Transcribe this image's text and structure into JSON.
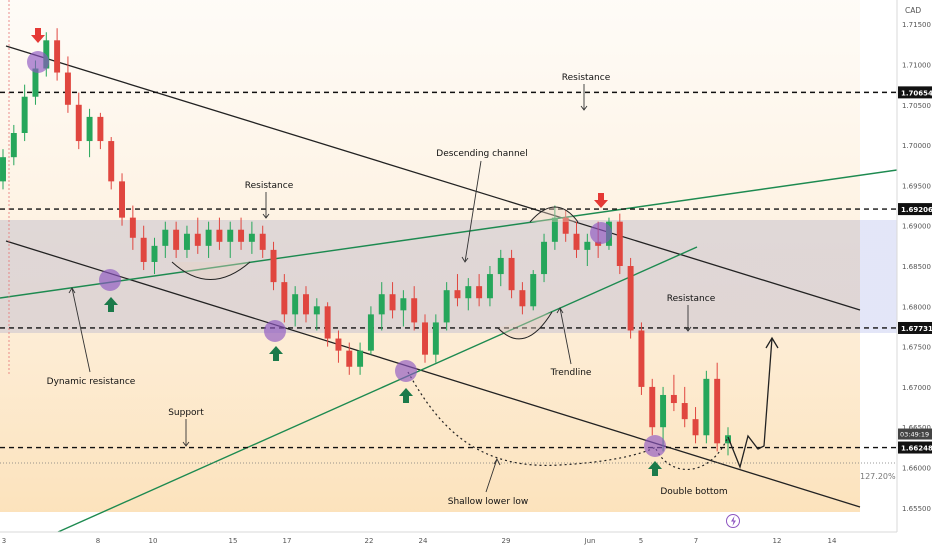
{
  "chart_data": {
    "type": "candlestick",
    "currency": "CAD",
    "x_ticks": [
      "3",
      "8",
      "10",
      "15",
      "17",
      "22",
      "24",
      "29",
      "Jun",
      "5",
      "7",
      "12",
      "14"
    ],
    "y_ticks": [
      "1.71500",
      "1.71000",
      "1.70500",
      "1.70000",
      "1.69500",
      "1.69000",
      "1.68500",
      "1.68000",
      "1.67500",
      "1.67000",
      "1.66500",
      "1.66000",
      "1.65500"
    ],
    "ylim": [
      1.652,
      1.718
    ],
    "price_levels": [
      {
        "price": 1.70654,
        "label": "1.70654"
      },
      {
        "price": 1.69206,
        "label": "1.69206"
      },
      {
        "price": 1.67731,
        "label": "1.67731"
      },
      {
        "price": 1.66248,
        "label": "1.66248"
      }
    ],
    "current_price": "1.66248",
    "countdown": "03:49:19",
    "fib_label": "127.20%",
    "fib_level": 1.6602,
    "annotations": [
      "Resistance",
      "Resistance",
      "Descending channel",
      "Resistance",
      "Dynamic resistance",
      "Trendline",
      "Support",
      "Shallow lower low",
      "Double bottom"
    ],
    "candles": [
      [
        1.6955,
        1.6995,
        1.6945,
        1.6985
      ],
      [
        1.6985,
        1.7025,
        1.6975,
        1.7015
      ],
      [
        1.7015,
        1.7075,
        1.7005,
        1.706
      ],
      [
        1.706,
        1.7105,
        1.705,
        1.7095
      ],
      [
        1.7095,
        1.714,
        1.7085,
        1.713
      ],
      [
        1.713,
        1.7145,
        1.708,
        1.709
      ],
      [
        1.709,
        1.711,
        1.704,
        1.705
      ],
      [
        1.705,
        1.7065,
        1.6995,
        1.7005
      ],
      [
        1.7005,
        1.7045,
        1.6985,
        1.7035
      ],
      [
        1.7035,
        1.704,
        1.6995,
        1.7005
      ],
      [
        1.7005,
        1.701,
        1.6945,
        1.6955
      ],
      [
        1.6955,
        1.6965,
        1.69,
        1.691
      ],
      [
        1.691,
        1.6925,
        1.687,
        1.6885
      ],
      [
        1.6885,
        1.69,
        1.6845,
        1.6855
      ],
      [
        1.6855,
        1.6885,
        1.684,
        1.6875
      ],
      [
        1.6875,
        1.6905,
        1.686,
        1.6895
      ],
      [
        1.6895,
        1.6905,
        1.686,
        1.687
      ],
      [
        1.687,
        1.69,
        1.686,
        1.689
      ],
      [
        1.689,
        1.691,
        1.6865,
        1.6875
      ],
      [
        1.6875,
        1.6905,
        1.686,
        1.6895
      ],
      [
        1.6895,
        1.691,
        1.687,
        1.688
      ],
      [
        1.688,
        1.6905,
        1.686,
        1.6895
      ],
      [
        1.6895,
        1.691,
        1.687,
        1.688
      ],
      [
        1.688,
        1.6905,
        1.6865,
        1.689
      ],
      [
        1.689,
        1.69,
        1.686,
        1.687
      ],
      [
        1.687,
        1.688,
        1.682,
        1.683
      ],
      [
        1.683,
        1.684,
        1.678,
        1.679
      ],
      [
        1.679,
        1.6825,
        1.6775,
        1.6815
      ],
      [
        1.6815,
        1.6825,
        1.678,
        1.679
      ],
      [
        1.679,
        1.681,
        1.677,
        1.68
      ],
      [
        1.68,
        1.6805,
        1.675,
        1.676
      ],
      [
        1.676,
        1.677,
        1.673,
        1.6745
      ],
      [
        1.6745,
        1.6755,
        1.6715,
        1.6725
      ],
      [
        1.6725,
        1.6755,
        1.6715,
        1.6745
      ],
      [
        1.6745,
        1.68,
        1.674,
        1.679
      ],
      [
        1.679,
        1.683,
        1.677,
        1.6815
      ],
      [
        1.6815,
        1.683,
        1.6785,
        1.6795
      ],
      [
        1.6795,
        1.682,
        1.6775,
        1.681
      ],
      [
        1.681,
        1.6825,
        1.677,
        1.678
      ],
      [
        1.678,
        1.679,
        1.673,
        1.674
      ],
      [
        1.674,
        1.679,
        1.673,
        1.678
      ],
      [
        1.678,
        1.683,
        1.677,
        1.682
      ],
      [
        1.682,
        1.684,
        1.68,
        1.681
      ],
      [
        1.681,
        1.6835,
        1.6795,
        1.6825
      ],
      [
        1.6825,
        1.684,
        1.68,
        1.681
      ],
      [
        1.681,
        1.685,
        1.68,
        1.684
      ],
      [
        1.684,
        1.687,
        1.6825,
        1.686
      ],
      [
        1.686,
        1.687,
        1.681,
        1.682
      ],
      [
        1.682,
        1.683,
        1.679,
        1.68
      ],
      [
        1.68,
        1.6845,
        1.6795,
        1.684
      ],
      [
        1.684,
        1.689,
        1.683,
        1.688
      ],
      [
        1.688,
        1.6925,
        1.687,
        1.691
      ],
      [
        1.691,
        1.692,
        1.688,
        1.689
      ],
      [
        1.689,
        1.6905,
        1.686,
        1.687
      ],
      [
        1.687,
        1.689,
        1.685,
        1.688
      ],
      [
        1.688,
        1.6905,
        1.686,
        1.6875
      ],
      [
        1.6875,
        1.691,
        1.687,
        1.6905
      ],
      [
        1.6905,
        1.6915,
        1.684,
        1.685
      ],
      [
        1.685,
        1.686,
        1.676,
        1.677
      ],
      [
        1.677,
        1.678,
        1.669,
        1.67
      ],
      [
        1.67,
        1.671,
        1.664,
        1.665
      ],
      [
        1.665,
        1.67,
        1.662,
        1.669
      ],
      [
        1.669,
        1.6715,
        1.667,
        1.668
      ],
      [
        1.668,
        1.67,
        1.665,
        1.666
      ],
      [
        1.666,
        1.6675,
        1.663,
        1.664
      ],
      [
        1.664,
        1.672,
        1.663,
        1.671
      ],
      [
        1.671,
        1.673,
        1.662,
        1.663
      ],
      [
        1.663,
        1.665,
        1.6615,
        1.664
      ]
    ]
  }
}
